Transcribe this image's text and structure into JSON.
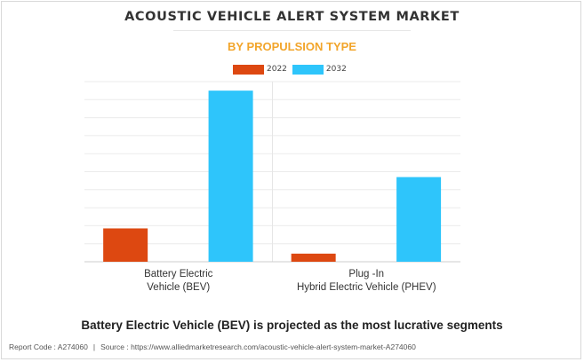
{
  "header": {
    "title": "ACOUSTIC VEHICLE ALERT SYSTEM MARKET",
    "subtitle": "BY PROPULSION TYPE"
  },
  "caption": "Battery Electric Vehicle (BEV) is projected as the most lucrative segments",
  "footer": {
    "report_code": "Report Code : A274060",
    "separator": "|",
    "source": "Source : https://www.alliedmarketresearch.com/acoustic-vehicle-alert-system-market-A274060"
  },
  "chart_data": {
    "type": "bar",
    "title": "ACOUSTIC VEHICLE ALERT SYSTEM MARKET",
    "subtitle": "BY PROPULSION TYPE",
    "xlabel": "",
    "ylabel": "",
    "ylim": [
      0,
      100
    ],
    "grid": true,
    "legend_position": "top-center",
    "categories": [
      [
        "Battery Electric",
        "Vehicle (BEV)"
      ],
      [
        "Plug -In",
        "Hybrid Electric Vehicle (PHEV)"
      ]
    ],
    "series": [
      {
        "name": "2022",
        "color": "#dd4811",
        "values": [
          18.5,
          4.5
        ]
      },
      {
        "name": "2032",
        "color": "#2ec5fb",
        "values": [
          95,
          47
        ]
      }
    ]
  }
}
